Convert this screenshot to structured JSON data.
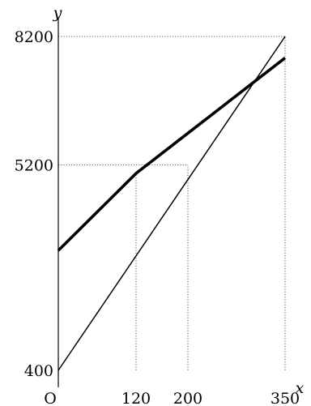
{
  "chart_data": {
    "type": "line",
    "title": "",
    "xlabel": "x",
    "ylabel": "y",
    "origin_label": "O",
    "xlim": [
      0,
      350
    ],
    "ylim": [
      400,
      8200
    ],
    "x_ticks": [
      {
        "value": 120,
        "label": "120"
      },
      {
        "value": 200,
        "label": "200"
      },
      {
        "value": 350,
        "label": "350"
      }
    ],
    "y_ticks": [
      {
        "value": 400,
        "label": "400"
      },
      {
        "value": 5200,
        "label": "5200"
      },
      {
        "value": 8200,
        "label": "8200"
      }
    ],
    "series": [
      {
        "style": "thick",
        "points": [
          [
            0,
            3200
          ],
          [
            120,
            5000
          ],
          [
            350,
            7700
          ]
        ]
      },
      {
        "style": "thin",
        "points": [
          [
            0,
            400
          ],
          [
            350,
            8200
          ]
        ]
      }
    ],
    "reference_lines": [
      {
        "type": "horizontal",
        "y": 8200,
        "x_from": 0,
        "x_to": 350
      },
      {
        "type": "horizontal",
        "y": 5200,
        "x_from": 0,
        "x_to": 200
      },
      {
        "type": "vertical",
        "x": 120,
        "y_from": 400,
        "y_to": 5000
      },
      {
        "type": "vertical",
        "x": 200,
        "y_from": 400,
        "y_to": 5200
      },
      {
        "type": "vertical",
        "x": 350,
        "y_from": 400,
        "y_to": 8200
      }
    ],
    "grid": false,
    "colors": {
      "line": "#000000",
      "guide": "#555555"
    }
  }
}
